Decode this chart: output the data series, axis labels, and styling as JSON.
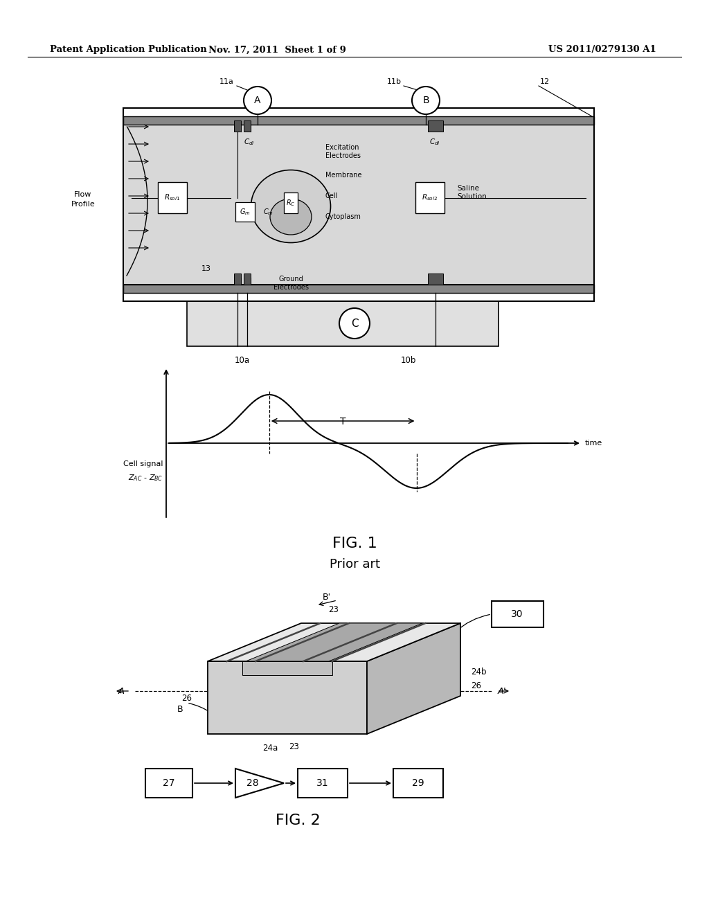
{
  "bg_color": "#ffffff",
  "header_text1": "Patent Application Publication",
  "header_text2": "Nov. 17, 2011  Sheet 1 of 9",
  "header_text3": "US 2011/0279130 A1",
  "fig1_caption": "FIG. 1",
  "fig1_subcaption": "Prior art",
  "fig2_caption": "FIG. 2"
}
